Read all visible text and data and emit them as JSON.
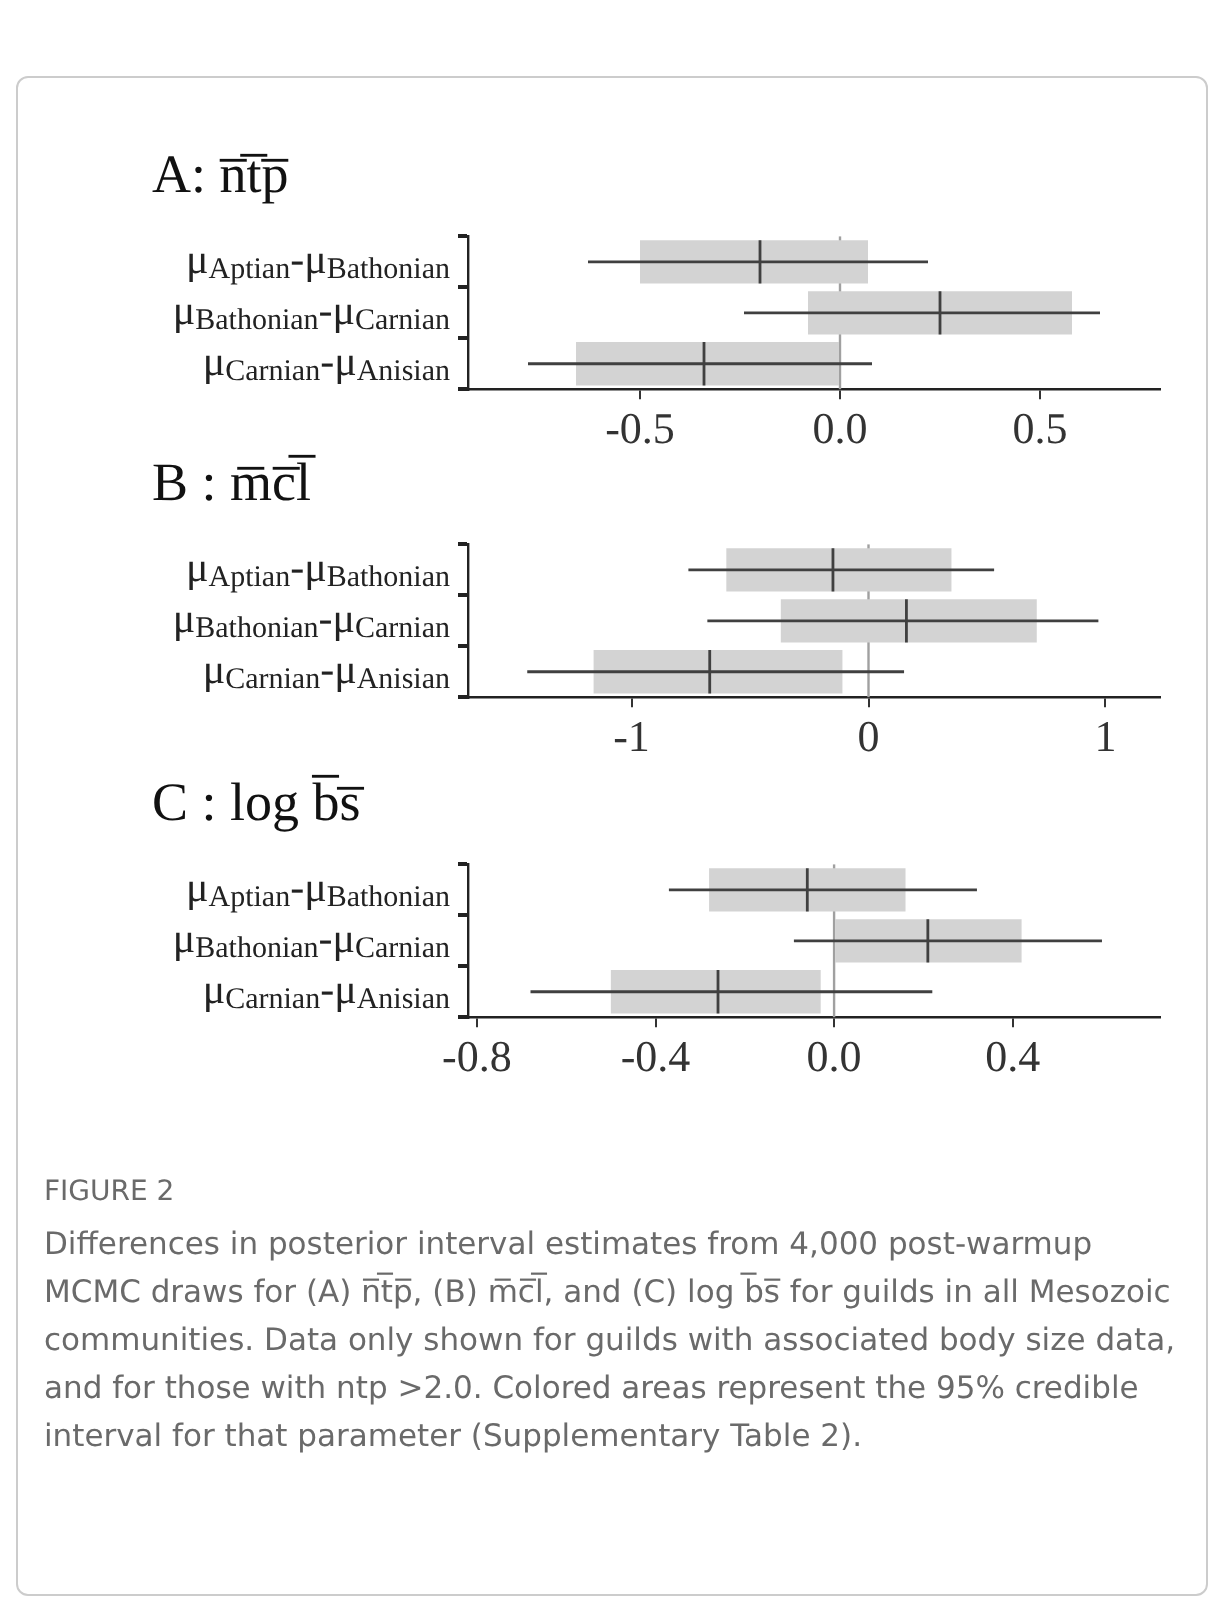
{
  "chart_data": [
    {
      "type": "box",
      "orientation": "horizontal",
      "title": "A: n̅t̅p̅",
      "categories": [
        "μ$_{Aptian}$-μ$_{Bathonian}$",
        "μ$_{Bathonian}$-μ$_{Carnian}$",
        "μ$_{Carnian}$-μ$_{Anisian}$"
      ],
      "color": "#d3d3d3",
      "boxes": [
        {
          "low": -0.63,
          "q1": -0.5,
          "median": -0.2,
          "q3": 0.07,
          "high": 0.22
        },
        {
          "low": -0.24,
          "q1": -0.08,
          "median": 0.25,
          "q3": 0.58,
          "high": 0.65
        },
        {
          "low": -0.78,
          "q1": -0.66,
          "median": -0.34,
          "q3": 0.0,
          "high": 0.08
        }
      ],
      "xlim": [
        -0.93,
        0.8
      ],
      "xticks": [
        {
          "value": -0.5,
          "label": "-0.5"
        },
        {
          "value": 0,
          "label": "0.0"
        },
        {
          "value": 0.5,
          "label": "0.5"
        }
      ],
      "ref_lines": [
        {
          "axis": "x",
          "value": 0,
          "color": "#a0a0a0"
        }
      ],
      "grid": false,
      "legend": false
    },
    {
      "type": "box",
      "orientation": "horizontal",
      "title": "B : m̅c̅l̅",
      "categories": [
        "μ$_{Aptian}$-μ$_{Bathonian}$",
        "μ$_{Bathonian}$-μ$_{Carnian}$",
        "μ$_{Carnian}$-μ$_{Anisian}$"
      ],
      "color": "#d3d3d3",
      "boxes": [
        {
          "low": -0.76,
          "q1": -0.6,
          "median": -0.15,
          "q3": 0.35,
          "high": 0.53
        },
        {
          "low": -0.68,
          "q1": -0.37,
          "median": 0.16,
          "q3": 0.71,
          "high": 0.97
        },
        {
          "low": -1.44,
          "q1": -1.16,
          "median": -0.67,
          "q3": -0.11,
          "high": 0.15
        }
      ],
      "xlim": [
        -1.69,
        1.23
      ],
      "xticks": [
        {
          "value": -1,
          "label": "-1"
        },
        0,
        1
      ],
      "ref_lines": [
        {
          "axis": "x",
          "value": 0,
          "color": "#a0a0a0"
        }
      ],
      "grid": false,
      "legend": false
    },
    {
      "type": "box",
      "orientation": "horizontal",
      "title": "C : log b̅s̅",
      "categories": [
        "μ$_{Aptian}$-μ$_{Bathonian}$",
        "μ$_{Bathonian}$-μ$_{Carnian}$",
        "μ$_{Carnian}$-μ$_{Anisian}$"
      ],
      "color": "#d3d3d3",
      "boxes": [
        {
          "low": -0.37,
          "q1": -0.28,
          "median": -0.06,
          "q3": 0.16,
          "high": 0.32
        },
        {
          "low": -0.09,
          "q1": 0.0,
          "median": 0.21,
          "q3": 0.42,
          "high": 0.6
        },
        {
          "low": -0.68,
          "q1": -0.5,
          "median": -0.26,
          "q3": -0.03,
          "high": 0.22
        }
      ],
      "xlim": [
        -0.82,
        0.73
      ],
      "xticks": [
        {
          "value": -0.8,
          "label": "-0.8"
        },
        {
          "value": -0.4,
          "label": "-0.4"
        },
        {
          "value": 0,
          "label": "0.0"
        },
        {
          "value": 0.4,
          "label": "0.4"
        }
      ],
      "ref_lines": [
        {
          "axis": "x",
          "value": 0,
          "color": "#a0a0a0"
        }
      ],
      "grid": false,
      "legend": false,
      "annotations": [
        "FIGURE 2",
        "Differences in posterior interval estimates from 4,000 post-warmup MCMC draws for (A) n̅t̅p̅, (B) m̅c̅l̅, and (C) log b̅s̅ for guilds in all Mesozoic communities. Data only shown for guilds with associated body size data, and for those with ntp >2.0. Colored areas represent the 95% credible interval for that parameter (Supplementary Table 2)."
      ]
    }
  ]
}
